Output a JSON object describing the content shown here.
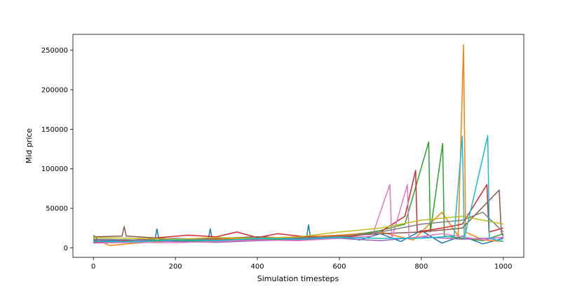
{
  "chart_data": {
    "type": "line",
    "title": "",
    "xlabel": "Simulation timesteps",
    "ylabel": "Mid price",
    "xlim": [
      -50,
      1050
    ],
    "ylim": [
      -12000,
      270000
    ],
    "x_ticks": [
      0,
      200,
      400,
      600,
      800,
      1000
    ],
    "y_ticks": [
      0,
      50000,
      100000,
      150000,
      200000,
      250000
    ],
    "grid": false,
    "legend": "none",
    "series_colors": [
      "#1f77b4",
      "#ff7f0e",
      "#2ca02c",
      "#d62728",
      "#9467bd",
      "#8c564b",
      "#e377c2",
      "#7f7f7f",
      "#bcbd22",
      "#17becf"
    ],
    "series": [
      {
        "color": "#1f77b4",
        "points": [
          [
            0,
            9000
          ],
          [
            60,
            8500
          ],
          [
            150,
            10000
          ],
          [
            155,
            24000
          ],
          [
            160,
            10000
          ],
          [
            280,
            11000
          ],
          [
            285,
            24000
          ],
          [
            290,
            10000
          ],
          [
            450,
            11000
          ],
          [
            520,
            13000
          ],
          [
            525,
            29000
          ],
          [
            530,
            12000
          ],
          [
            600,
            14000
          ],
          [
            650,
            10000
          ],
          [
            700,
            18000
          ],
          [
            750,
            8000
          ],
          [
            800,
            22000
          ],
          [
            850,
            6000
          ],
          [
            900,
            15000
          ],
          [
            950,
            5000
          ],
          [
            1000,
            12000
          ]
        ]
      },
      {
        "color": "#ff7f0e",
        "points": [
          [
            0,
            12000
          ],
          [
            40,
            3000
          ],
          [
            100,
            6000
          ],
          [
            200,
            9000
          ],
          [
            300,
            11000
          ],
          [
            400,
            12000
          ],
          [
            500,
            14000
          ],
          [
            600,
            16000
          ],
          [
            700,
            20000
          ],
          [
            780,
            10000
          ],
          [
            850,
            45000
          ],
          [
            890,
            15000
          ],
          [
            903,
            257000
          ],
          [
            908,
            20000
          ],
          [
            950,
            10000
          ],
          [
            1000,
            8000
          ]
        ]
      },
      {
        "color": "#2ca02c",
        "points": [
          [
            0,
            16000
          ],
          [
            10,
            11000
          ],
          [
            100,
            10000
          ],
          [
            200,
            9000
          ],
          [
            300,
            8000
          ],
          [
            400,
            10000
          ],
          [
            500,
            11000
          ],
          [
            600,
            13000
          ],
          [
            700,
            22000
          ],
          [
            760,
            30000
          ],
          [
            818,
            134000
          ],
          [
            822,
            20000
          ],
          [
            852,
            132000
          ],
          [
            856,
            15000
          ],
          [
            900,
            12000
          ],
          [
            950,
            9000
          ],
          [
            1000,
            18000
          ]
        ]
      },
      {
        "color": "#d62728",
        "points": [
          [
            0,
            7000
          ],
          [
            50,
            7500
          ],
          [
            140,
            12000
          ],
          [
            230,
            16000
          ],
          [
            300,
            14000
          ],
          [
            350,
            20000
          ],
          [
            400,
            13000
          ],
          [
            450,
            18000
          ],
          [
            500,
            15000
          ],
          [
            600,
            12000
          ],
          [
            700,
            20000
          ],
          [
            760,
            40000
          ],
          [
            786,
            98000
          ],
          [
            790,
            20000
          ],
          [
            850,
            25000
          ],
          [
            900,
            30000
          ],
          [
            960,
            80000
          ],
          [
            965,
            20000
          ],
          [
            1000,
            25000
          ]
        ]
      },
      {
        "color": "#9467bd",
        "points": [
          [
            0,
            10000
          ],
          [
            100,
            9500
          ],
          [
            200,
            8000
          ],
          [
            300,
            7000
          ],
          [
            400,
            9000
          ],
          [
            500,
            10000
          ],
          [
            600,
            12000
          ],
          [
            700,
            9000
          ],
          [
            800,
            14000
          ],
          [
            900,
            11000
          ],
          [
            1000,
            13000
          ]
        ]
      },
      {
        "color": "#8c564b",
        "points": [
          [
            0,
            14000
          ],
          [
            70,
            15000
          ],
          [
            75,
            27000
          ],
          [
            80,
            15000
          ],
          [
            200,
            11000
          ],
          [
            300,
            12000
          ],
          [
            400,
            14000
          ],
          [
            500,
            12000
          ],
          [
            600,
            15000
          ],
          [
            700,
            18000
          ],
          [
            800,
            20000
          ],
          [
            900,
            25000
          ],
          [
            990,
            73000
          ],
          [
            995,
            20000
          ],
          [
            1000,
            15000
          ]
        ]
      },
      {
        "color": "#e377c2",
        "points": [
          [
            0,
            6000
          ],
          [
            100,
            7000
          ],
          [
            200,
            6500
          ],
          [
            300,
            8000
          ],
          [
            400,
            10000
          ],
          [
            500,
            9000
          ],
          [
            600,
            12000
          ],
          [
            680,
            15000
          ],
          [
            723,
            80000
          ],
          [
            728,
            12000
          ],
          [
            766,
            80000
          ],
          [
            770,
            12000
          ],
          [
            850,
            18000
          ],
          [
            950,
            10000
          ],
          [
            1000,
            14000
          ]
        ]
      },
      {
        "color": "#7f7f7f",
        "points": [
          [
            0,
            11000
          ],
          [
            100,
            10000
          ],
          [
            200,
            12000
          ],
          [
            300,
            10000
          ],
          [
            400,
            11000
          ],
          [
            500,
            13000
          ],
          [
            600,
            14000
          ],
          [
            700,
            20000
          ],
          [
            800,
            30000
          ],
          [
            900,
            35000
          ],
          [
            950,
            45000
          ],
          [
            1000,
            20000
          ]
        ]
      },
      {
        "color": "#bcbd22",
        "points": [
          [
            0,
            13000
          ],
          [
            100,
            12000
          ],
          [
            200,
            11000
          ],
          [
            300,
            13000
          ],
          [
            400,
            12000
          ],
          [
            500,
            14000
          ],
          [
            600,
            20000
          ],
          [
            700,
            25000
          ],
          [
            800,
            35000
          ],
          [
            900,
            40000
          ],
          [
            1000,
            30000
          ]
        ]
      },
      {
        "color": "#17becf",
        "points": [
          [
            0,
            8000
          ],
          [
            100,
            7500
          ],
          [
            200,
            10000
          ],
          [
            300,
            9000
          ],
          [
            400,
            12000
          ],
          [
            500,
            11000
          ],
          [
            600,
            13000
          ],
          [
            700,
            12000
          ],
          [
            800,
            12000
          ],
          [
            880,
            15000
          ],
          [
            900,
            141000
          ],
          [
            905,
            12000
          ],
          [
            962,
            142000
          ],
          [
            966,
            12000
          ],
          [
            1000,
            8000
          ]
        ]
      }
    ]
  }
}
